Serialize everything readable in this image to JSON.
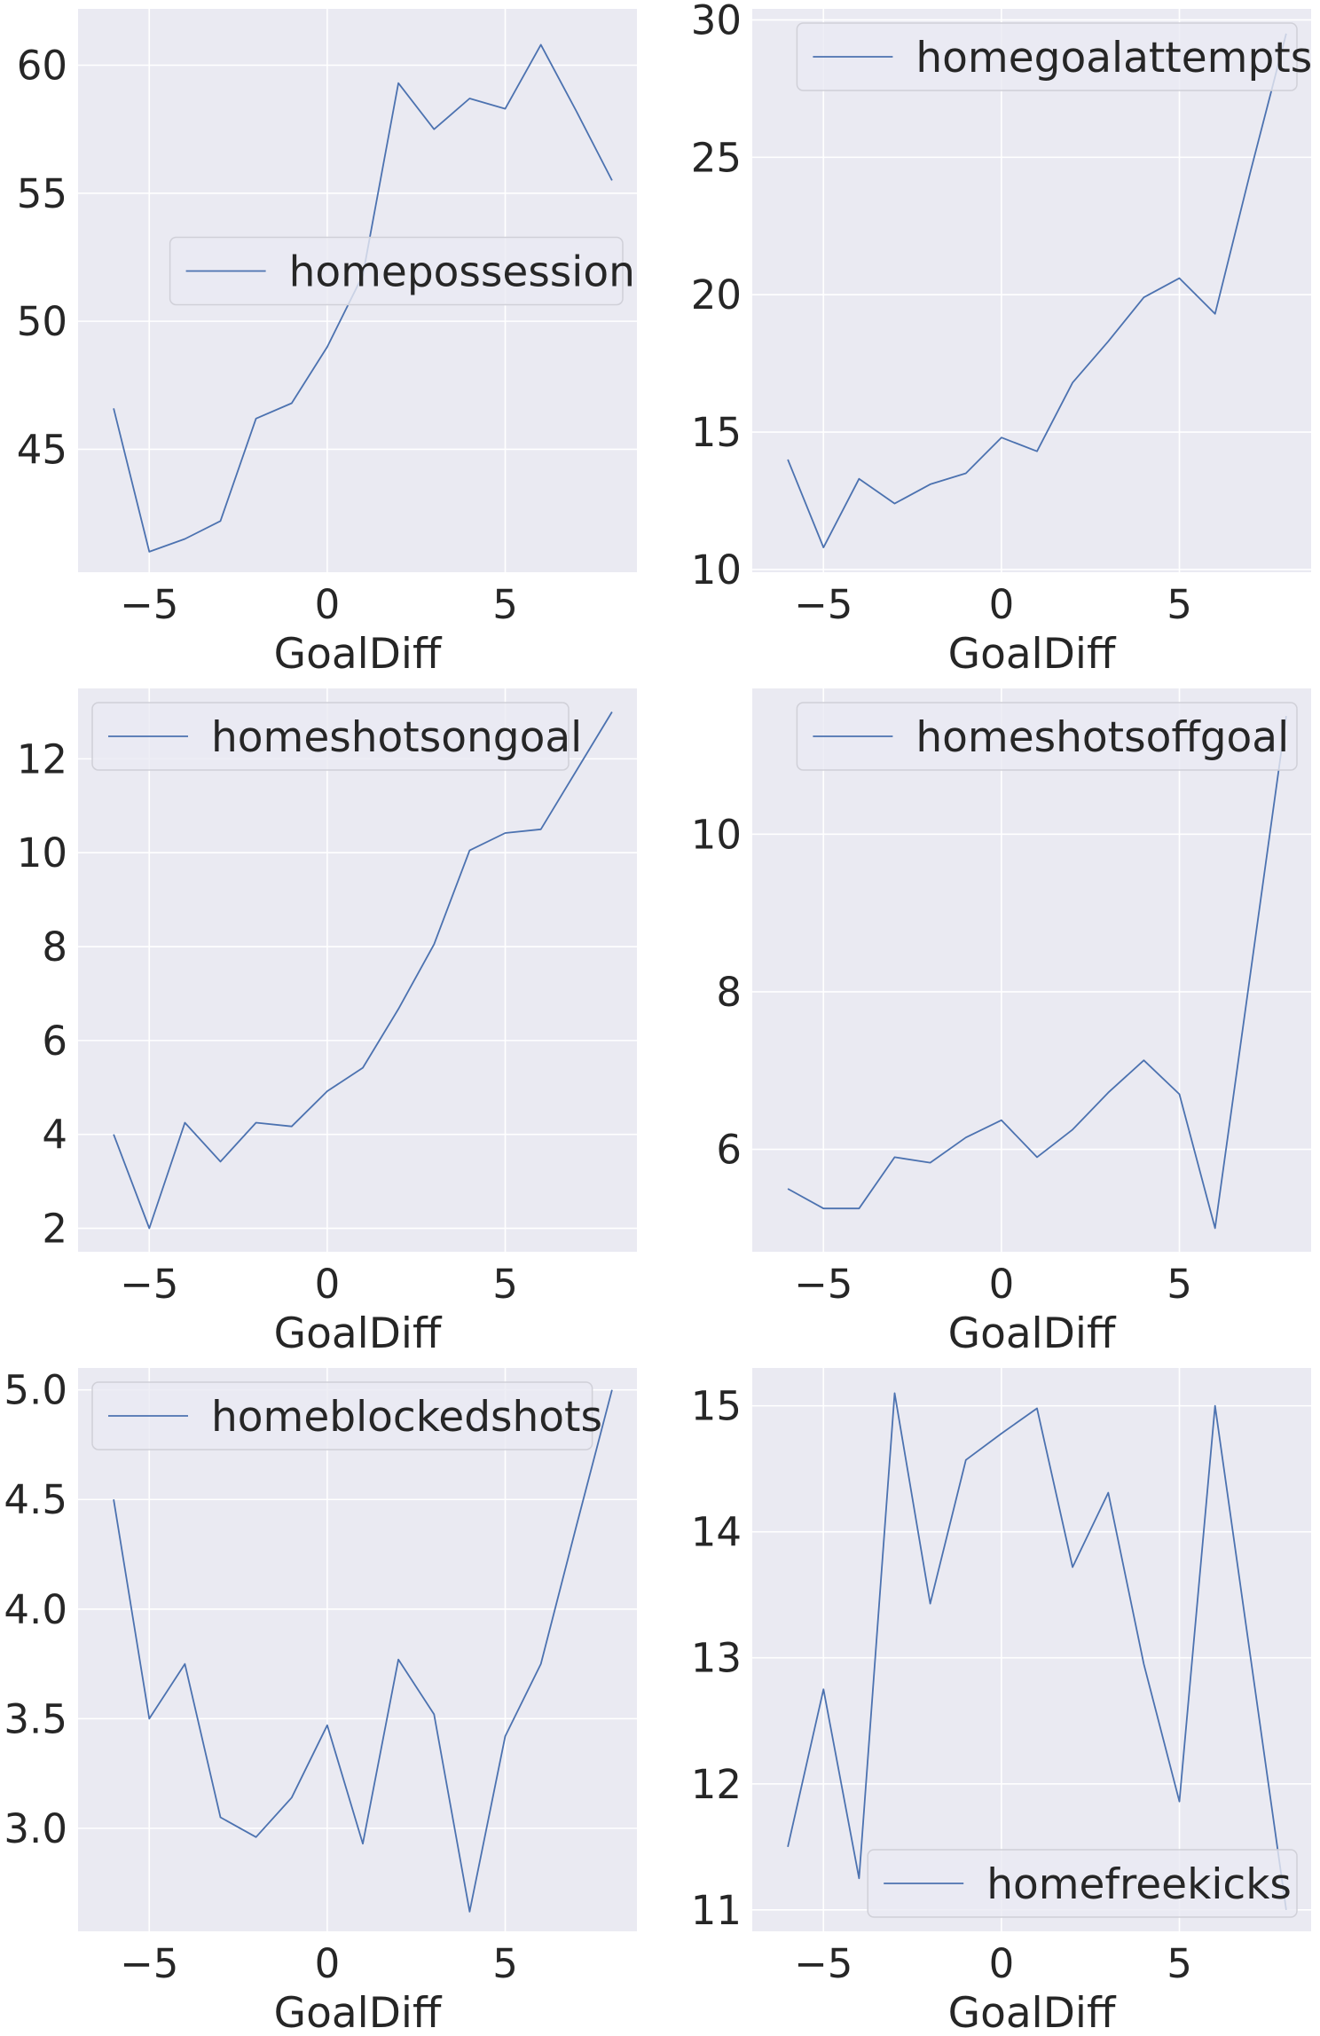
{
  "colors": {
    "panel_background": "#eaeaf2",
    "grid": "#ffffff",
    "line": "#4c72b0",
    "text": "#262626",
    "legend_border": "#d0d0d8"
  },
  "chart_data": [
    {
      "type": "line",
      "xlabel": "GoalDiff",
      "ylabel": "",
      "grid": true,
      "xlim": [
        -7,
        8.7
      ],
      "ylim": [
        40.2,
        62.2
      ],
      "xticks": [
        -5,
        0,
        5
      ],
      "xtick_labels": [
        "−5",
        "0",
        "5"
      ],
      "yticks": [
        45,
        50,
        55,
        60
      ],
      "ytick_labels": [
        "45",
        "50",
        "55",
        "60"
      ],
      "legend_position": "center-right",
      "x": [
        -6,
        -5,
        -4,
        -3,
        -2,
        -1,
        0,
        1,
        2,
        3,
        4,
        5,
        6,
        7,
        8
      ],
      "series": [
        {
          "name": "homepossession",
          "values": [
            46.6,
            41.0,
            41.5,
            42.2,
            46.2,
            46.8,
            49.0,
            51.8,
            59.3,
            57.5,
            58.7,
            58.3,
            60.8,
            58.2,
            55.5
          ]
        }
      ]
    },
    {
      "type": "line",
      "xlabel": "GoalDiff",
      "ylabel": "",
      "grid": true,
      "xlim": [
        -7,
        8.7
      ],
      "ylim": [
        9.9,
        30.4
      ],
      "xticks": [
        -5,
        0,
        5
      ],
      "xtick_labels": [
        "−5",
        "0",
        "5"
      ],
      "yticks": [
        10,
        15,
        20,
        25,
        30
      ],
      "ytick_labels": [
        "10",
        "15",
        "20",
        "25",
        "30"
      ],
      "legend_position": "top-right",
      "x": [
        -6,
        -5,
        -4,
        -3,
        -2,
        -1,
        0,
        1,
        2,
        3,
        4,
        5,
        6,
        7,
        8
      ],
      "series": [
        {
          "name": "homegoalattempts",
          "values": [
            14.0,
            10.8,
            13.3,
            12.4,
            13.1,
            13.5,
            14.8,
            14.3,
            16.8,
            18.3,
            19.9,
            20.6,
            19.3,
            24.5,
            29.5
          ]
        }
      ]
    },
    {
      "type": "line",
      "xlabel": "GoalDiff",
      "ylabel": "",
      "grid": true,
      "xlim": [
        -7,
        8.7
      ],
      "ylim": [
        1.5,
        13.5
      ],
      "xticks": [
        -5,
        0,
        5
      ],
      "xtick_labels": [
        "−5",
        "0",
        "5"
      ],
      "yticks": [
        2,
        4,
        6,
        8,
        10,
        12
      ],
      "ytick_labels": [
        "2",
        "4",
        "6",
        "8",
        "10",
        "12"
      ],
      "legend_position": "top-left",
      "x": [
        -6,
        -5,
        -4,
        -3,
        -2,
        -1,
        0,
        1,
        2,
        3,
        4,
        5,
        6,
        7,
        8
      ],
      "series": [
        {
          "name": "homeshotsongoal",
          "values": [
            4.0,
            2.0,
            4.25,
            3.42,
            4.25,
            4.17,
            4.92,
            5.42,
            6.67,
            8.05,
            10.05,
            10.42,
            10.5,
            11.75,
            13.0
          ]
        }
      ]
    },
    {
      "type": "line",
      "xlabel": "GoalDiff",
      "ylabel": "",
      "grid": true,
      "xlim": [
        -7,
        8.7
      ],
      "ylim": [
        4.7,
        11.85
      ],
      "xticks": [
        -5,
        0,
        5
      ],
      "xtick_labels": [
        "−5",
        "0",
        "5"
      ],
      "yticks": [
        6,
        8,
        10
      ],
      "ytick_labels": [
        "6",
        "8",
        "10"
      ],
      "legend_position": "top-right",
      "x": [
        -6,
        -5,
        -4,
        -3,
        -2,
        -1,
        0,
        1,
        2,
        3,
        4,
        5,
        6,
        7,
        8
      ],
      "series": [
        {
          "name": "homeshotsoffgoal",
          "values": [
            5.5,
            5.25,
            5.25,
            5.9,
            5.83,
            6.15,
            6.37,
            5.9,
            6.25,
            6.72,
            7.13,
            6.7,
            5.0,
            8.25,
            11.5
          ]
        }
      ]
    },
    {
      "type": "line",
      "xlabel": "GoalDiff",
      "ylabel": "",
      "grid": true,
      "xlim": [
        -7,
        8.7
      ],
      "ylim": [
        2.53,
        5.1
      ],
      "xticks": [
        -5,
        0,
        5
      ],
      "xtick_labels": [
        "−5",
        "0",
        "5"
      ],
      "yticks": [
        3.0,
        3.5,
        4.0,
        4.5,
        5.0
      ],
      "ytick_labels": [
        "3.0",
        "3.5",
        "4.0",
        "4.5",
        "5.0"
      ],
      "legend_position": "top-left",
      "x": [
        -6,
        -5,
        -4,
        -3,
        -2,
        -1,
        0,
        1,
        2,
        3,
        4,
        5,
        6,
        7,
        8
      ],
      "series": [
        {
          "name": "homeblockedshots",
          "values": [
            4.5,
            3.5,
            3.75,
            3.05,
            2.96,
            3.14,
            3.47,
            2.93,
            3.77,
            3.52,
            2.62,
            3.42,
            3.75,
            4.38,
            5.0
          ]
        }
      ]
    },
    {
      "type": "line",
      "xlabel": "GoalDiff",
      "ylabel": "",
      "grid": true,
      "xlim": [
        -7,
        8.7
      ],
      "ylim": [
        10.83,
        15.3
      ],
      "xticks": [
        -5,
        0,
        5
      ],
      "xtick_labels": [
        "−5",
        "0",
        "5"
      ],
      "yticks": [
        11,
        12,
        13,
        14,
        15
      ],
      "ytick_labels": [
        "11",
        "12",
        "13",
        "14",
        "15"
      ],
      "legend_position": "bottom-right",
      "x": [
        -6,
        -5,
        -4,
        -3,
        -2,
        -1,
        0,
        1,
        2,
        3,
        4,
        5,
        6,
        7,
        8
      ],
      "series": [
        {
          "name": "homefreekicks",
          "values": [
            11.5,
            12.75,
            11.25,
            15.1,
            13.43,
            14.57,
            14.78,
            14.98,
            13.72,
            14.31,
            12.95,
            11.86,
            15.0,
            13.0,
            11.0
          ]
        }
      ]
    }
  ]
}
